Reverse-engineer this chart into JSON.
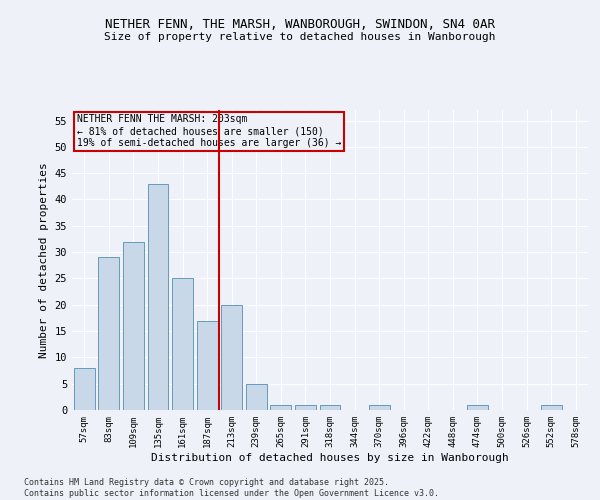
{
  "title": "NETHER FENN, THE MARSH, WANBOROUGH, SWINDON, SN4 0AR",
  "subtitle": "Size of property relative to detached houses in Wanborough",
  "xlabel": "Distribution of detached houses by size in Wanborough",
  "ylabel": "Number of detached properties",
  "bar_color": "#c8d8e8",
  "bar_edge_color": "#6699bb",
  "categories": [
    "57sqm",
    "83sqm",
    "109sqm",
    "135sqm",
    "161sqm",
    "187sqm",
    "213sqm",
    "239sqm",
    "265sqm",
    "291sqm",
    "318sqm",
    "344sqm",
    "370sqm",
    "396sqm",
    "422sqm",
    "448sqm",
    "474sqm",
    "500sqm",
    "526sqm",
    "552sqm",
    "578sqm"
  ],
  "values": [
    8,
    29,
    32,
    43,
    25,
    17,
    20,
    5,
    1,
    1,
    1,
    0,
    1,
    0,
    0,
    0,
    1,
    0,
    0,
    1,
    0
  ],
  "ylim": [
    0,
    57
  ],
  "yticks": [
    0,
    5,
    10,
    15,
    20,
    25,
    30,
    35,
    40,
    45,
    50,
    55
  ],
  "vline_color": "#cc0000",
  "vline_index": 6,
  "annotation_text": "NETHER FENN THE MARSH: 203sqm\n← 81% of detached houses are smaller (150)\n19% of semi-detached houses are larger (36) →",
  "annotation_box_color": "#cc0000",
  "background_color": "#eef2f8",
  "grid_color": "#ffffff",
  "footer": "Contains HM Land Registry data © Crown copyright and database right 2025.\nContains public sector information licensed under the Open Government Licence v3.0."
}
